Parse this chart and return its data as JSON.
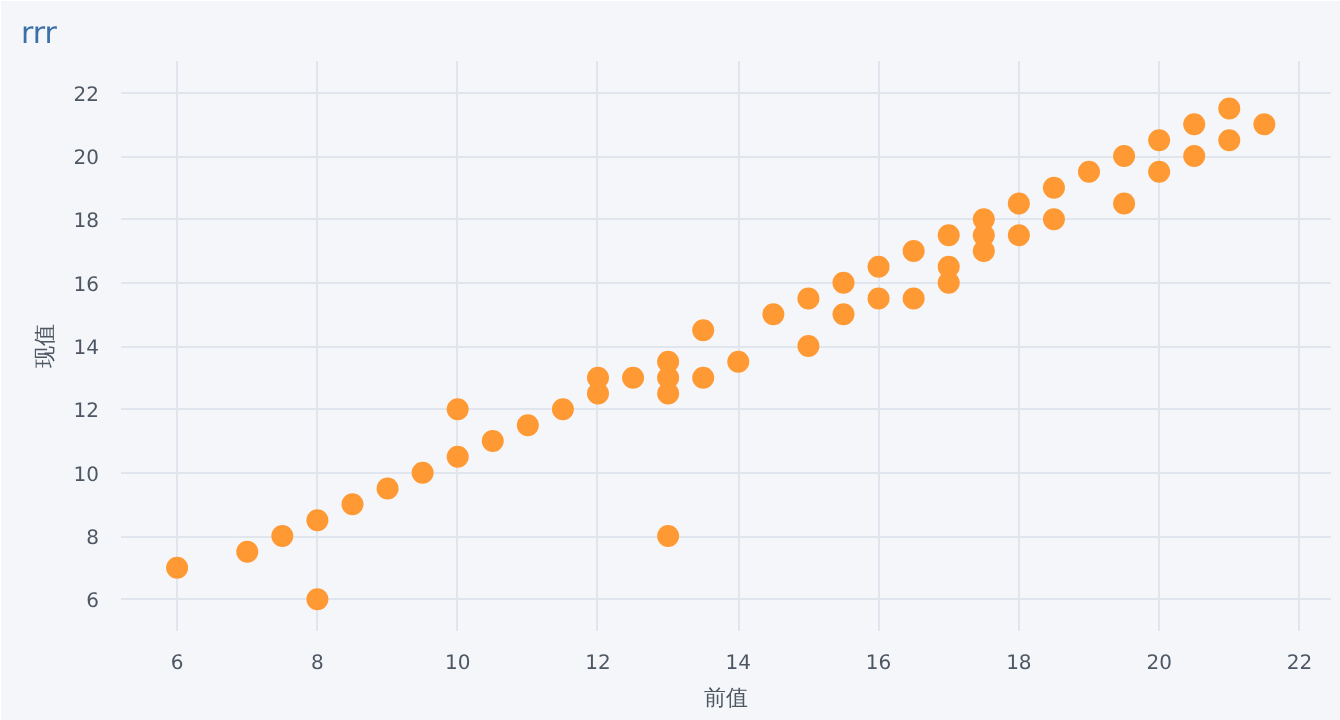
{
  "chart_data": {
    "type": "scatter",
    "title": "rrr",
    "xlabel": "前值",
    "ylabel": "现值",
    "xlim": [
      5.2,
      22.45
    ],
    "ylim": [
      5,
      23
    ],
    "xticks": [
      6,
      8,
      10,
      12,
      14,
      16,
      18,
      20,
      22
    ],
    "yticks": [
      6,
      8,
      10,
      12,
      14,
      16,
      18,
      20,
      22
    ],
    "grid": true,
    "marker": "circle",
    "series": [
      {
        "color": "#ff9933",
        "x": [
          6,
          7,
          7.5,
          8,
          8,
          8.5,
          9,
          9.5,
          10,
          10,
          10.5,
          11,
          11.5,
          12,
          12,
          12.5,
          13,
          13,
          13,
          13,
          13.5,
          13.5,
          14,
          14.5,
          15,
          15,
          15.5,
          15.5,
          16,
          16,
          16.5,
          16.5,
          17,
          17,
          17,
          17.5,
          17.5,
          17.5,
          18,
          18,
          18.5,
          18.5,
          19,
          19.5,
          19.5,
          20,
          20,
          20.5,
          20.5,
          21,
          21,
          21.5
        ],
        "values": [
          7,
          7.5,
          8,
          8.5,
          6,
          9,
          9.5,
          10,
          10.5,
          12,
          11,
          11.5,
          12,
          12.5,
          13,
          13,
          12.5,
          13,
          13.5,
          8,
          14.5,
          13,
          13.5,
          15,
          15.5,
          14,
          16,
          15,
          16.5,
          15.5,
          17,
          15.5,
          17.5,
          16.5,
          16,
          18,
          17.5,
          17,
          18.5,
          17.5,
          19,
          18,
          19.5,
          20,
          18.5,
          20.5,
          19.5,
          21,
          20,
          21.5,
          20.5,
          21
        ]
      }
    ]
  }
}
